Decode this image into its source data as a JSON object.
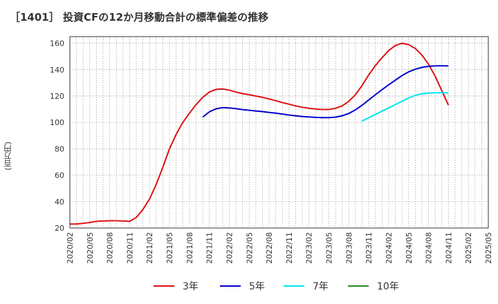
{
  "chart_data": {
    "type": "line",
    "title": "［1401］ 投資CFの12か月移動合計の標準偏差の推移",
    "ylabel": "(百万円)",
    "ylim": [
      20,
      165
    ],
    "yticks": [
      20,
      40,
      60,
      80,
      100,
      120,
      140,
      160
    ],
    "xlim": [
      "2020/02",
      "2025/05"
    ],
    "xticks": [
      "2020/02",
      "2020/05",
      "2020/08",
      "2020/11",
      "2021/02",
      "2021/05",
      "2021/08",
      "2021/11",
      "2022/02",
      "2022/05",
      "2022/08",
      "2022/11",
      "2023/02",
      "2023/05",
      "2023/08",
      "2023/11",
      "2024/02",
      "2024/05",
      "2024/08",
      "2024/11",
      "2025/02",
      "2025/05"
    ],
    "grid": true,
    "legend_position": "bottom",
    "series": [
      {
        "name": "3年",
        "color": "#dd1111",
        "points": [
          [
            "2020/02",
            23
          ],
          [
            "2020/03",
            23
          ],
          [
            "2020/04",
            23.5
          ],
          [
            "2020/05",
            24.2
          ],
          [
            "2020/06",
            25
          ],
          [
            "2020/07",
            25.3
          ],
          [
            "2020/08",
            25.5
          ],
          [
            "2020/09",
            25.5
          ],
          [
            "2020/10",
            25.3
          ],
          [
            "2020/11",
            25
          ],
          [
            "2020/12",
            28
          ],
          [
            "2021/01",
            34
          ],
          [
            "2021/02",
            42
          ],
          [
            "2021/03",
            53
          ],
          [
            "2021/04",
            66
          ],
          [
            "2021/05",
            80
          ],
          [
            "2021/06",
            91
          ],
          [
            "2021/07",
            100
          ],
          [
            "2021/08",
            107
          ],
          [
            "2021/09",
            113.5
          ],
          [
            "2021/10",
            119
          ],
          [
            "2021/11",
            123
          ],
          [
            "2021/12",
            125
          ],
          [
            "2022/01",
            125.3
          ],
          [
            "2022/02",
            124.5
          ],
          [
            "2022/03",
            123
          ],
          [
            "2022/04",
            121.8
          ],
          [
            "2022/05",
            121
          ],
          [
            "2022/06",
            120
          ],
          [
            "2022/07",
            119
          ],
          [
            "2022/08",
            117.8
          ],
          [
            "2022/09",
            116.5
          ],
          [
            "2022/10",
            115
          ],
          [
            "2022/11",
            113.8
          ],
          [
            "2022/12",
            112.5
          ],
          [
            "2023/01",
            111.5
          ],
          [
            "2023/02",
            110.7
          ],
          [
            "2023/03",
            110.2
          ],
          [
            "2023/04",
            109.8
          ],
          [
            "2023/05",
            109.8
          ],
          [
            "2023/06",
            110.7
          ],
          [
            "2023/07",
            112.5
          ],
          [
            "2023/08",
            116
          ],
          [
            "2023/09",
            121
          ],
          [
            "2023/10",
            128
          ],
          [
            "2023/11",
            136
          ],
          [
            "2023/12",
            143
          ],
          [
            "2024/01",
            149
          ],
          [
            "2024/02",
            154.5
          ],
          [
            "2024/03",
            158.3
          ],
          [
            "2024/04",
            160
          ],
          [
            "2024/05",
            159
          ],
          [
            "2024/06",
            156
          ],
          [
            "2024/07",
            151
          ],
          [
            "2024/08",
            144
          ],
          [
            "2024/09",
            135
          ],
          [
            "2024/10",
            124
          ],
          [
            "2024/11",
            113
          ]
        ]
      },
      {
        "name": "5年",
        "color": "#0000cc",
        "points": [
          [
            "2021/10",
            104
          ],
          [
            "2021/11",
            108
          ],
          [
            "2021/12",
            110.3
          ],
          [
            "2022/01",
            111.2
          ],
          [
            "2022/02",
            111
          ],
          [
            "2022/03",
            110.4
          ],
          [
            "2022/04",
            109.7
          ],
          [
            "2022/05",
            109.2
          ],
          [
            "2022/06",
            108.7
          ],
          [
            "2022/07",
            108.2
          ],
          [
            "2022/08",
            107.6
          ],
          [
            "2022/09",
            107
          ],
          [
            "2022/10",
            106.3
          ],
          [
            "2022/11",
            105.6
          ],
          [
            "2022/12",
            105
          ],
          [
            "2023/01",
            104.5
          ],
          [
            "2023/02",
            104.1
          ],
          [
            "2023/03",
            103.8
          ],
          [
            "2023/04",
            103.6
          ],
          [
            "2023/05",
            103.6
          ],
          [
            "2023/06",
            104
          ],
          [
            "2023/07",
            105
          ],
          [
            "2023/08",
            106.8
          ],
          [
            "2023/09",
            109.5
          ],
          [
            "2023/10",
            113
          ],
          [
            "2023/11",
            117
          ],
          [
            "2023/12",
            121
          ],
          [
            "2024/01",
            124.8
          ],
          [
            "2024/02",
            128.5
          ],
          [
            "2024/03",
            132
          ],
          [
            "2024/04",
            135.5
          ],
          [
            "2024/05",
            138.3
          ],
          [
            "2024/06",
            140.3
          ],
          [
            "2024/07",
            141.7
          ],
          [
            "2024/08",
            142.5
          ],
          [
            "2024/09",
            142.8
          ],
          [
            "2024/10",
            142.9
          ],
          [
            "2024/11",
            142.8
          ]
        ]
      },
      {
        "name": "7年",
        "color": "#00e5ee",
        "points": [
          [
            "2023/10",
            101
          ],
          [
            "2023/11",
            103.5
          ],
          [
            "2023/12",
            106
          ],
          [
            "2024/01",
            108.5
          ],
          [
            "2024/02",
            111
          ],
          [
            "2024/03",
            113.5
          ],
          [
            "2024/04",
            116
          ],
          [
            "2024/05",
            118.5
          ],
          [
            "2024/06",
            120.5
          ],
          [
            "2024/07",
            121.7
          ],
          [
            "2024/08",
            122.3
          ],
          [
            "2024/09",
            122.5
          ],
          [
            "2024/10",
            122.5
          ],
          [
            "2024/11",
            122.4
          ]
        ]
      },
      {
        "name": "10年",
        "color": "#228b22",
        "points": []
      }
    ]
  }
}
